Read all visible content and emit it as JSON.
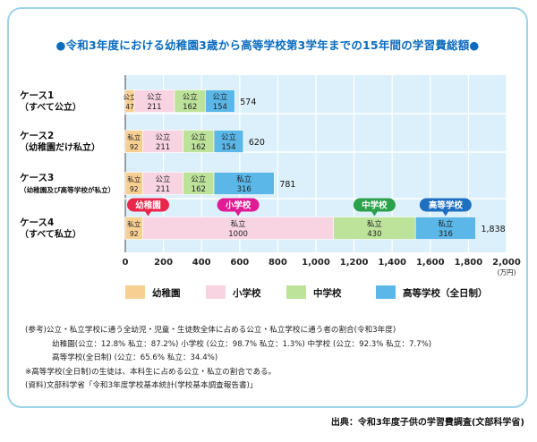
{
  "title": "●令和3年度における幼稚園3歳から高等学校第3学年までの15年間の学習費総額●",
  "chart_data": {
    "type": "bar",
    "stacked": true,
    "orientation": "horizontal",
    "x_ticks": [
      "0",
      "200",
      "400",
      "600",
      "800",
      "1,000",
      "1,200",
      "1,400",
      "1,600",
      "1,800",
      "2,000"
    ],
    "xlim": [
      0,
      2000
    ],
    "x_unit": "(万円)",
    "grid": true,
    "legend_position": "bottom",
    "colors": {
      "kindergarten": "#f8cf92",
      "elementary": "#f8d4e3",
      "junior": "#bde39b",
      "high": "#5ab7e8"
    },
    "series": [
      {
        "name": "幼稚園",
        "values": [
          47,
          92,
          92,
          92
        ]
      },
      {
        "name": "小学校",
        "values": [
          211,
          211,
          211,
          1000
        ]
      },
      {
        "name": "中学校",
        "values": [
          162,
          162,
          162,
          430
        ]
      },
      {
        "name": "高等学校（全日制）",
        "values": [
          154,
          154,
          316,
          316
        ]
      }
    ],
    "cases": [
      {
        "label1": "ケース1",
        "label2": "（すべて公立）",
        "total": "574",
        "segs": [
          {
            "t": "公立",
            "v": "47"
          },
          {
            "t": "公立",
            "v": "211"
          },
          {
            "t": "公立",
            "v": "162"
          },
          {
            "t": "公立",
            "v": "154"
          }
        ]
      },
      {
        "label1": "ケース2",
        "label2": "（幼稚園だけ私立）",
        "total": "620",
        "segs": [
          {
            "t": "私立",
            "v": "92"
          },
          {
            "t": "公立",
            "v": "211"
          },
          {
            "t": "公立",
            "v": "162"
          },
          {
            "t": "公立",
            "v": "154"
          }
        ]
      },
      {
        "label1": "ケース3",
        "label2": "（幼稚園及び高等学校が私立）",
        "total": "781",
        "segs": [
          {
            "t": "私立",
            "v": "92"
          },
          {
            "t": "公立",
            "v": "211"
          },
          {
            "t": "公立",
            "v": "162"
          },
          {
            "t": "私立",
            "v": "316"
          }
        ]
      },
      {
        "label1": "ケース4",
        "label2": "（すべて私立）",
        "total": "1,838",
        "segs": [
          {
            "t": "私立",
            "v": "92"
          },
          {
            "t": "私立",
            "v": "1000"
          },
          {
            "t": "私立",
            "v": "430"
          },
          {
            "t": "私立",
            "v": "316"
          }
        ]
      }
    ],
    "callouts": [
      {
        "label": "幼稚園",
        "color": "#e8274a"
      },
      {
        "label": "小学校",
        "color": "#e11b95"
      },
      {
        "label": "中学校",
        "color": "#2aa14a"
      },
      {
        "label": "高等学校",
        "color": "#1e6fc0"
      }
    ]
  },
  "notes": [
    "(参考)公立・私立学校に通う全幼児・児童・生徒数全体に占める公立・私立学校に通う者の割合(令和3年度)",
    "幼稚園(公立：12.8%  私立：87.2%)  小学校 (公立：98.7%  私立：1.3%)  中学校 (公立：92.3%  私立：7.7%)",
    "高等学校(全日制) (公立：65.6%  私立：34.4%)",
    "※高等学校(全日制)の生徒は、本科生に占める公立・私立の割合である。",
    "(資料)文部科学省「令和3年度学校基本統計(学校基本調査報告書)」"
  ],
  "source": "出典：令和3年度子供の学習費調査(文部科学省)"
}
